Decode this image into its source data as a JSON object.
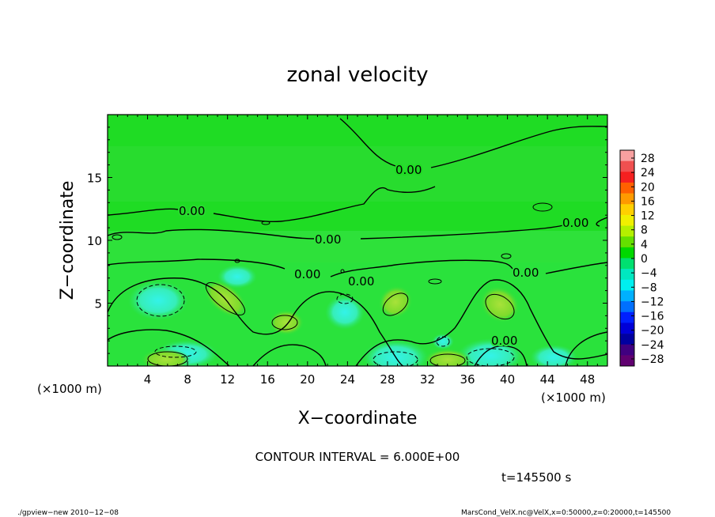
{
  "chart_data": {
    "type": "heatmap",
    "title": "zonal velocity",
    "xlabel": "X−coordinate",
    "ylabel": "Z−coordinate",
    "x_unit_left": "(×1000 m)",
    "x_unit_right": "(×1000 m)",
    "xlim": [
      0,
      50
    ],
    "ylim": [
      0,
      20
    ],
    "x_ticks": [
      "4",
      "8",
      "12",
      "16",
      "20",
      "24",
      "28",
      "32",
      "36",
      "40",
      "44",
      "48"
    ],
    "x_tick_values": [
      4,
      8,
      12,
      16,
      20,
      24,
      28,
      32,
      36,
      40,
      44,
      48
    ],
    "y_ticks": [
      "5",
      "10",
      "15"
    ],
    "y_tick_values": [
      5,
      10,
      15
    ],
    "contour_labels": [
      "0.00",
      "0.00",
      "0.00",
      "0.00",
      "0.00",
      "0.00",
      "0.00",
      "0.00"
    ],
    "colorbar": {
      "labels": [
        "28",
        "24",
        "20",
        "16",
        "12",
        "8",
        "4",
        "0",
        "−4",
        "−8",
        "−12",
        "−16",
        "−20",
        "−24",
        "−28"
      ],
      "colors": [
        "#f8a0a0",
        "#f05050",
        "#f52020",
        "#ff6000",
        "#ff9a00",
        "#ffd000",
        "#f0f000",
        "#b4f000",
        "#64e000",
        "#00d800",
        "#00e070",
        "#00e8c0",
        "#00f0f0",
        "#00b0ff",
        "#0070ff",
        "#0020ff",
        "#0000d8",
        "#0000a0",
        "#400080",
        "#600070"
      ]
    },
    "annotation": "CONTOUR INTERVAL = 6.000E+00",
    "time": "t=145500 s"
  },
  "footer": {
    "left": "./gpview−new  2010−12−08",
    "right": "MarsCond_VelX.nc@VelX,x=0:50000,z=0:20000,t=145500"
  }
}
